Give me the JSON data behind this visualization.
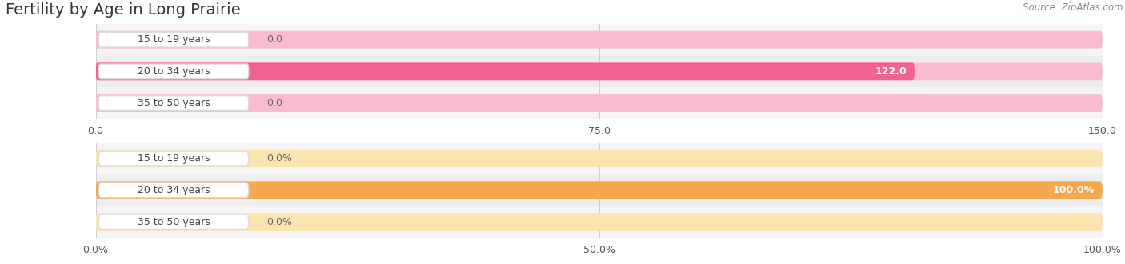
{
  "title": "Fertility by Age in Long Prairie",
  "source": "Source: ZipAtlas.com",
  "top_chart": {
    "categories": [
      "15 to 19 years",
      "20 to 34 years",
      "35 to 50 years"
    ],
    "values": [
      0.0,
      122.0,
      0.0
    ],
    "max_val": 150.0,
    "xlim": [
      0,
      150
    ],
    "xticks": [
      0.0,
      75.0,
      150.0
    ],
    "xtick_labels": [
      "0.0",
      "75.0",
      "150.0"
    ],
    "bar_color": "#f06292",
    "bar_bg_color": "#f8bbd0",
    "row_bg_color": "#f5f5f5",
    "row_bg_alt": "#eeeeee"
  },
  "bottom_chart": {
    "categories": [
      "15 to 19 years",
      "20 to 34 years",
      "35 to 50 years"
    ],
    "values": [
      0.0,
      100.0,
      0.0
    ],
    "max_val": 100.0,
    "xlim": [
      0,
      100
    ],
    "xticks": [
      0.0,
      50.0,
      100.0
    ],
    "xtick_labels": [
      "0.0%",
      "50.0%",
      "100.0%"
    ],
    "bar_color": "#f5a84e",
    "bar_bg_color": "#fce4b0",
    "row_bg_color": "#f5f5f5",
    "row_bg_alt": "#eeeeee"
  },
  "fig_width": 14.06,
  "fig_height": 3.31,
  "dpi": 100,
  "title_fontsize": 14,
  "source_fontsize": 8.5,
  "label_fontsize": 9,
  "tick_fontsize": 9
}
